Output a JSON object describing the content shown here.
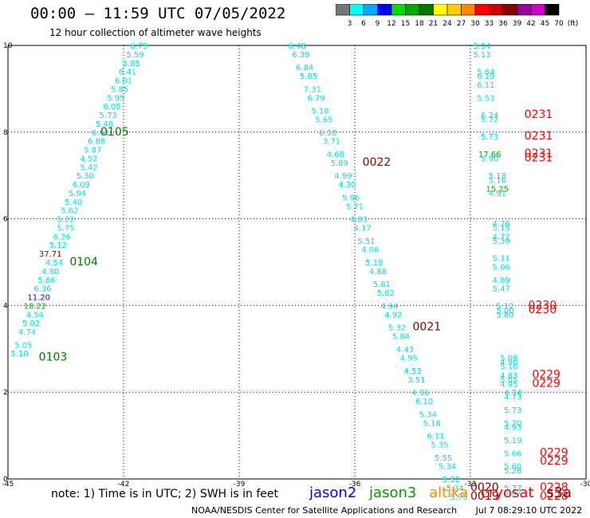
{
  "header": {
    "title": "00:00 – 11:59 UTC 07/05/2022",
    "subtitle": "12 hour collection of altimeter wave heights"
  },
  "colorbar": {
    "labels": [
      "3",
      "6",
      "9",
      "12",
      "15",
      "18",
      "21",
      "24",
      "27",
      "30",
      "33",
      "36",
      "39",
      "42",
      "45",
      "70",
      "(ft)"
    ],
    "colors": [
      "#777777",
      "#00ffff",
      "#00aaff",
      "#0000ff",
      "#00dd00",
      "#00aa00",
      "#007700",
      "#ffff00",
      "#ffcc00",
      "#ff8800",
      "#ff0000",
      "#cc0000",
      "#880000",
      "#990099",
      "#cc00cc",
      "#000000"
    ]
  },
  "footer": {
    "note": "note:  1) Time is in UTC;  2) SWH is in feet",
    "legend": [
      {
        "name": "jason2",
        "color": "#0000ff"
      },
      {
        "name": "jason3",
        "color": "#009900"
      },
      {
        "name": "altika",
        "color": "#ff8800"
      },
      {
        "name": "cryosat",
        "color": "#ff0000"
      },
      {
        "name": "s3a",
        "color": "#880000"
      }
    ],
    "credit": "NOAA/NESDIS Center for Satellite Applications and Research",
    "timestamp": "Jul  7 08:29:10 UTC 2022"
  },
  "chart_data": {
    "type": "scatter",
    "xlim": [
      -45,
      -30
    ],
    "ylim": [
      0,
      10
    ],
    "x_ticks": [
      "-45",
      "-42",
      "-39",
      "-36",
      "-33",
      "-30"
    ],
    "y_ticks": [
      "0",
      "2",
      "4",
      "6",
      "8",
      "10"
    ],
    "grid": true,
    "color_key": {
      "cyan": "#00dddd",
      "green": "#00aa00",
      "darkgreen": "#007700",
      "blue": "#0000ff",
      "red": "#ff0000",
      "maroon": "#880000",
      "darkred": "#aa0000"
    },
    "series": [
      {
        "name": "track1",
        "points": [
          {
            "x": -44.7,
            "y": 2.9,
            "v": "5.10",
            "c": "cyan"
          },
          {
            "x": -44.6,
            "y": 3.1,
            "v": "5.05",
            "c": "cyan"
          },
          {
            "x": -44.5,
            "y": 3.4,
            "v": "4.74",
            "c": "cyan"
          },
          {
            "x": -44.4,
            "y": 3.6,
            "v": "5.02",
            "c": "cyan"
          },
          {
            "x": -44.3,
            "y": 3.8,
            "v": "4.54",
            "c": "cyan"
          },
          {
            "x": -44.3,
            "y": 4.0,
            "v": "18.22",
            "c": "green"
          },
          {
            "x": -44.2,
            "y": 4.2,
            "v": "11.20",
            "c": "blue"
          },
          {
            "x": -44.1,
            "y": 4.4,
            "v": "6.36",
            "c": "cyan"
          },
          {
            "x": -44.0,
            "y": 4.6,
            "v": "5.66",
            "c": "cyan"
          },
          {
            "x": -43.9,
            "y": 4.8,
            "v": "4.80",
            "c": "cyan"
          },
          {
            "x": -43.8,
            "y": 5.0,
            "v": "4.54",
            "c": "cyan"
          },
          {
            "x": -43.9,
            "y": 5.2,
            "v": "37.71",
            "c": "maroon"
          },
          {
            "x": -43.7,
            "y": 5.4,
            "v": "5.12",
            "c": "cyan"
          },
          {
            "x": -43.6,
            "y": 5.6,
            "v": "6.26",
            "c": "cyan"
          },
          {
            "x": -43.5,
            "y": 5.8,
            "v": "5.75",
            "c": "cyan"
          },
          {
            "x": -43.5,
            "y": 6.0,
            "v": "5.22",
            "c": "cyan"
          },
          {
            "x": -43.4,
            "y": 6.2,
            "v": "5.62",
            "c": "cyan"
          },
          {
            "x": -43.3,
            "y": 6.4,
            "v": "5.40",
            "c": "cyan"
          },
          {
            "x": -43.2,
            "y": 6.6,
            "v": "5.94",
            "c": "cyan"
          },
          {
            "x": -43.1,
            "y": 6.8,
            "v": "6.09",
            "c": "cyan"
          },
          {
            "x": -43.0,
            "y": 7.0,
            "v": "5.30",
            "c": "cyan"
          },
          {
            "x": -42.9,
            "y": 7.2,
            "v": "5.42",
            "c": "cyan"
          },
          {
            "x": -42.9,
            "y": 7.4,
            "v": "4.52",
            "c": "cyan"
          },
          {
            "x": -42.8,
            "y": 7.6,
            "v": "5.87",
            "c": "cyan"
          },
          {
            "x": -42.7,
            "y": 7.8,
            "v": "6.88",
            "c": "cyan"
          },
          {
            "x": -42.6,
            "y": 8.0,
            "v": "6.61",
            "c": "cyan"
          },
          {
            "x": -42.5,
            "y": 8.2,
            "v": "5.48",
            "c": "cyan"
          },
          {
            "x": -42.4,
            "y": 8.4,
            "v": "5.73",
            "c": "cyan"
          },
          {
            "x": -42.3,
            "y": 8.6,
            "v": "6.05",
            "c": "cyan"
          },
          {
            "x": -42.2,
            "y": 8.8,
            "v": "5.95",
            "c": "cyan"
          },
          {
            "x": -42.1,
            "y": 9.0,
            "v": "5.85",
            "c": "cyan"
          },
          {
            "x": -42.0,
            "y": 9.2,
            "v": "6.01",
            "c": "cyan"
          },
          {
            "x": -41.9,
            "y": 9.4,
            "v": "6.41",
            "c": "cyan"
          },
          {
            "x": -41.8,
            "y": 9.6,
            "v": "5.85",
            "c": "cyan"
          },
          {
            "x": -41.7,
            "y": 9.8,
            "v": "5.59",
            "c": "cyan"
          },
          {
            "x": -41.6,
            "y": 10.0,
            "v": "6.75",
            "c": "cyan"
          }
        ]
      },
      {
        "name": "track2",
        "points": [
          {
            "x": -37.5,
            "y": 10.0,
            "v": "6.48",
            "c": "cyan"
          },
          {
            "x": -37.4,
            "y": 9.8,
            "v": "6.39",
            "c": "cyan"
          },
          {
            "x": -37.3,
            "y": 9.5,
            "v": "6.84",
            "c": "cyan"
          },
          {
            "x": -37.2,
            "y": 9.3,
            "v": "5.85",
            "c": "cyan"
          },
          {
            "x": -37.1,
            "y": 9.0,
            "v": "7.31",
            "c": "cyan"
          },
          {
            "x": -37.0,
            "y": 8.8,
            "v": "6.79",
            "c": "cyan"
          },
          {
            "x": -36.9,
            "y": 8.5,
            "v": "5.18",
            "c": "cyan"
          },
          {
            "x": -36.8,
            "y": 8.3,
            "v": "5.65",
            "c": "cyan"
          },
          {
            "x": -36.7,
            "y": 8.0,
            "v": "6.10",
            "c": "cyan"
          },
          {
            "x": -36.6,
            "y": 7.8,
            "v": "3.71",
            "c": "cyan"
          },
          {
            "x": -36.5,
            "y": 7.5,
            "v": "4.68",
            "c": "cyan"
          },
          {
            "x": -36.4,
            "y": 7.3,
            "v": "5.89",
            "c": "cyan"
          },
          {
            "x": -36.3,
            "y": 7.0,
            "v": "4.99",
            "c": "cyan"
          },
          {
            "x": -36.2,
            "y": 6.8,
            "v": "4.30",
            "c": "cyan"
          },
          {
            "x": -36.1,
            "y": 6.5,
            "v": "5.96",
            "c": "cyan"
          },
          {
            "x": -36.0,
            "y": 6.3,
            "v": "5.71",
            "c": "cyan"
          },
          {
            "x": -35.9,
            "y": 6.0,
            "v": "4.83",
            "c": "cyan"
          },
          {
            "x": -35.8,
            "y": 5.8,
            "v": "4.17",
            "c": "cyan"
          },
          {
            "x": -35.7,
            "y": 5.5,
            "v": "5.51",
            "c": "cyan"
          },
          {
            "x": -35.6,
            "y": 5.3,
            "v": "4.06",
            "c": "cyan"
          },
          {
            "x": -35.5,
            "y": 5.0,
            "v": "5.18",
            "c": "cyan"
          },
          {
            "x": -35.4,
            "y": 4.8,
            "v": "4.88",
            "c": "cyan"
          },
          {
            "x": -35.3,
            "y": 4.5,
            "v": "5.81",
            "c": "cyan"
          },
          {
            "x": -35.2,
            "y": 4.3,
            "v": "5.82",
            "c": "cyan"
          },
          {
            "x": -35.1,
            "y": 4.0,
            "v": "4.94",
            "c": "cyan"
          },
          {
            "x": -35.0,
            "y": 3.8,
            "v": "4.92",
            "c": "cyan"
          },
          {
            "x": -34.9,
            "y": 3.5,
            "v": "5.32",
            "c": "cyan"
          },
          {
            "x": -34.8,
            "y": 3.3,
            "v": "5.84",
            "c": "cyan"
          },
          {
            "x": -34.7,
            "y": 3.0,
            "v": "4.43",
            "c": "cyan"
          },
          {
            "x": -34.6,
            "y": 2.8,
            "v": "4.95",
            "c": "cyan"
          },
          {
            "x": -34.5,
            "y": 2.5,
            "v": "4.53",
            "c": "cyan"
          },
          {
            "x": -34.4,
            "y": 2.3,
            "v": "3.51",
            "c": "cyan"
          },
          {
            "x": -34.3,
            "y": 2.0,
            "v": "4.96",
            "c": "cyan"
          },
          {
            "x": -34.2,
            "y": 1.8,
            "v": "6.10",
            "c": "cyan"
          },
          {
            "x": -34.1,
            "y": 1.5,
            "v": "5.34",
            "c": "cyan"
          },
          {
            "x": -34.0,
            "y": 1.3,
            "v": "5.18",
            "c": "cyan"
          },
          {
            "x": -33.9,
            "y": 1.0,
            "v": "6.11",
            "c": "cyan"
          },
          {
            "x": -33.8,
            "y": 0.8,
            "v": "5.35",
            "c": "cyan"
          },
          {
            "x": -33.7,
            "y": 0.5,
            "v": "5.55",
            "c": "cyan"
          },
          {
            "x": -33.6,
            "y": 0.3,
            "v": "5.34",
            "c": "cyan"
          },
          {
            "x": -33.5,
            "y": 0.0,
            "v": "5.32",
            "c": "cyan"
          },
          {
            "x": -33.4,
            "y": -0.2,
            "v": "5.34",
            "c": "cyan"
          },
          {
            "x": -33.3,
            "y": -0.4,
            "v": "5.75",
            "c": "cyan"
          }
        ]
      },
      {
        "name": "track3",
        "points": [
          {
            "x": -32.7,
            "y": 10.0,
            "v": "5.94",
            "c": "cyan"
          },
          {
            "x": -32.7,
            "y": 9.8,
            "v": "5.13",
            "c": "cyan"
          },
          {
            "x": -32.6,
            "y": 9.4,
            "v": "5.64",
            "c": "cyan"
          },
          {
            "x": -32.6,
            "y": 9.3,
            "v": "6.19",
            "c": "cyan"
          },
          {
            "x": -32.6,
            "y": 9.1,
            "v": "6.11",
            "c": "cyan"
          },
          {
            "x": -32.6,
            "y": 8.8,
            "v": "5.53",
            "c": "cyan"
          },
          {
            "x": -32.5,
            "y": 8.4,
            "v": "6.24",
            "c": "cyan"
          },
          {
            "x": -32.5,
            "y": 8.3,
            "v": "5.72",
            "c": "cyan"
          },
          {
            "x": -32.5,
            "y": 7.9,
            "v": "5.73",
            "c": "cyan"
          },
          {
            "x": -32.5,
            "y": 7.5,
            "v": "17.66",
            "c": "green"
          },
          {
            "x": -32.5,
            "y": 7.4,
            "v": "5.90",
            "c": "cyan"
          },
          {
            "x": -32.3,
            "y": 7.0,
            "v": "5.18",
            "c": "cyan"
          },
          {
            "x": -32.3,
            "y": 6.9,
            "v": "5.16",
            "c": "cyan"
          },
          {
            "x": -32.3,
            "y": 6.7,
            "v": "15.25",
            "c": "green"
          },
          {
            "x": -32.3,
            "y": 6.6,
            "v": "4.91",
            "c": "cyan"
          },
          {
            "x": -32.2,
            "y": 5.9,
            "v": "4.76",
            "c": "cyan"
          },
          {
            "x": -32.2,
            "y": 5.8,
            "v": "5.15",
            "c": "cyan"
          },
          {
            "x": -32.2,
            "y": 5.6,
            "v": "4.72",
            "c": "cyan"
          },
          {
            "x": -32.2,
            "y": 5.5,
            "v": "5.39",
            "c": "cyan"
          },
          {
            "x": -32.2,
            "y": 5.1,
            "v": "5.11",
            "c": "cyan"
          },
          {
            "x": -32.2,
            "y": 4.9,
            "v": "5.06",
            "c": "cyan"
          },
          {
            "x": -32.2,
            "y": 4.6,
            "v": "4.89",
            "c": "cyan"
          },
          {
            "x": -32.2,
            "y": 4.4,
            "v": "5.47",
            "c": "cyan"
          },
          {
            "x": -32.1,
            "y": 4.0,
            "v": "5.12",
            "c": "cyan"
          },
          {
            "x": -32.1,
            "y": 3.9,
            "v": "5.00",
            "c": "cyan"
          },
          {
            "x": -32.1,
            "y": 3.8,
            "v": "5.80",
            "c": "cyan"
          },
          {
            "x": -32.0,
            "y": 2.8,
            "v": "5.08",
            "c": "cyan"
          },
          {
            "x": -32.0,
            "y": 2.7,
            "v": "4.90",
            "c": "cyan"
          },
          {
            "x": -32.0,
            "y": 2.6,
            "v": "5.10",
            "c": "cyan"
          },
          {
            "x": -32.0,
            "y": 2.4,
            "v": "4.83",
            "c": "cyan"
          },
          {
            "x": -32.0,
            "y": 2.3,
            "v": "5.05",
            "c": "cyan"
          },
          {
            "x": -32.0,
            "y": 2.2,
            "v": "4.95",
            "c": "cyan"
          },
          {
            "x": -31.9,
            "y": 2.0,
            "v": "4.74",
            "c": "cyan"
          },
          {
            "x": -31.9,
            "y": 1.9,
            "v": "4.73",
            "c": "cyan"
          },
          {
            "x": -31.9,
            "y": 1.6,
            "v": "5.73",
            "c": "cyan"
          },
          {
            "x": -31.9,
            "y": 1.3,
            "v": "5.70",
            "c": "cyan"
          },
          {
            "x": -31.9,
            "y": 1.2,
            "v": "4.93",
            "c": "cyan"
          },
          {
            "x": -31.9,
            "y": 0.9,
            "v": "5.19",
            "c": "cyan"
          },
          {
            "x": -31.9,
            "y": 0.6,
            "v": "5.66",
            "c": "cyan"
          },
          {
            "x": -31.9,
            "y": 0.3,
            "v": "5.60",
            "c": "cyan"
          },
          {
            "x": -31.9,
            "y": 0.2,
            "v": "5.28",
            "c": "cyan"
          },
          {
            "x": -31.9,
            "y": -0.2,
            "v": "5.77",
            "c": "cyan"
          },
          {
            "x": -31.9,
            "y": -0.3,
            "v": "6.07",
            "c": "cyan"
          }
        ]
      },
      {
        "name": "time-labels",
        "points": [
          {
            "x": -42.6,
            "y": 8.0,
            "v": "0105",
            "c": "darkgreen",
            "big": true
          },
          {
            "x": -43.4,
            "y": 5.0,
            "v": "0104",
            "c": "darkgreen",
            "big": true
          },
          {
            "x": -44.2,
            "y": 2.8,
            "v": "0103",
            "c": "darkgreen",
            "big": true
          },
          {
            "x": -35.8,
            "y": 7.3,
            "v": "0022",
            "c": "maroon",
            "big": true
          },
          {
            "x": -34.5,
            "y": 3.5,
            "v": "0021",
            "c": "maroon",
            "big": true
          },
          {
            "x": -33.0,
            "y": -0.2,
            "v": "0020",
            "c": "maroon",
            "big": true
          },
          {
            "x": -33.0,
            "y": -0.4,
            "v": "0019",
            "c": "maroon",
            "big": true
          },
          {
            "x": -31.6,
            "y": 8.4,
            "v": "0231",
            "c": "red",
            "big": true
          },
          {
            "x": -31.6,
            "y": 7.9,
            "v": "0231",
            "c": "red",
            "big": true
          },
          {
            "x": -31.6,
            "y": 7.5,
            "v": "0231",
            "c": "red",
            "big": true
          },
          {
            "x": -31.6,
            "y": 7.4,
            "v": "0231",
            "c": "red",
            "big": true
          },
          {
            "x": -31.5,
            "y": 4.0,
            "v": "0230",
            "c": "red",
            "big": true
          },
          {
            "x": -31.5,
            "y": 3.9,
            "v": "0230",
            "c": "red",
            "big": true
          },
          {
            "x": -31.4,
            "y": 2.4,
            "v": "0229",
            "c": "red",
            "big": true
          },
          {
            "x": -31.4,
            "y": 2.2,
            "v": "0229",
            "c": "red",
            "big": true
          },
          {
            "x": -31.2,
            "y": 0.6,
            "v": "0229",
            "c": "red",
            "big": true
          },
          {
            "x": -31.2,
            "y": 0.4,
            "v": "0229",
            "c": "red",
            "big": true
          },
          {
            "x": -31.2,
            "y": -0.2,
            "v": "0228",
            "c": "red",
            "big": true
          },
          {
            "x": -31.2,
            "y": -0.4,
            "v": "0228",
            "c": "red",
            "big": true
          }
        ]
      }
    ]
  }
}
